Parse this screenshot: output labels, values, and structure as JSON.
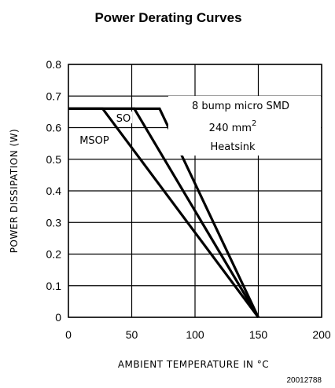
{
  "chart_data": {
    "type": "line",
    "title": "Power Derating Curves",
    "xlabel": "AMBIENT TEMPERATURE IN °C",
    "ylabel": "POWER DISSIPATION (W)",
    "xlim": [
      0,
      200
    ],
    "ylim": [
      0,
      0.8
    ],
    "x_ticks": [
      "0",
      "50",
      "100",
      "150",
      "200"
    ],
    "y_ticks": [
      "0",
      "0.1",
      "0.2",
      "0.3",
      "0.4",
      "0.5",
      "0.6",
      "0.7",
      "0.8"
    ],
    "grid": true,
    "series": [
      {
        "name": "MSOP",
        "x": [
          0,
          27,
          150
        ],
        "y": [
          0.66,
          0.66,
          0
        ]
      },
      {
        "name": "SO",
        "x": [
          0,
          52,
          150
        ],
        "y": [
          0.66,
          0.66,
          0
        ]
      },
      {
        "name": "8 bump micro SMD",
        "x": [
          0,
          72,
          150
        ],
        "y": [
          0.66,
          0.66,
          0
        ]
      }
    ],
    "annotations": {
      "smd_label": "8 bump micro SMD",
      "area_value": "240 mm",
      "area_exponent": "2",
      "heatsink": "Heatsink"
    },
    "figure_id": "20012788"
  }
}
